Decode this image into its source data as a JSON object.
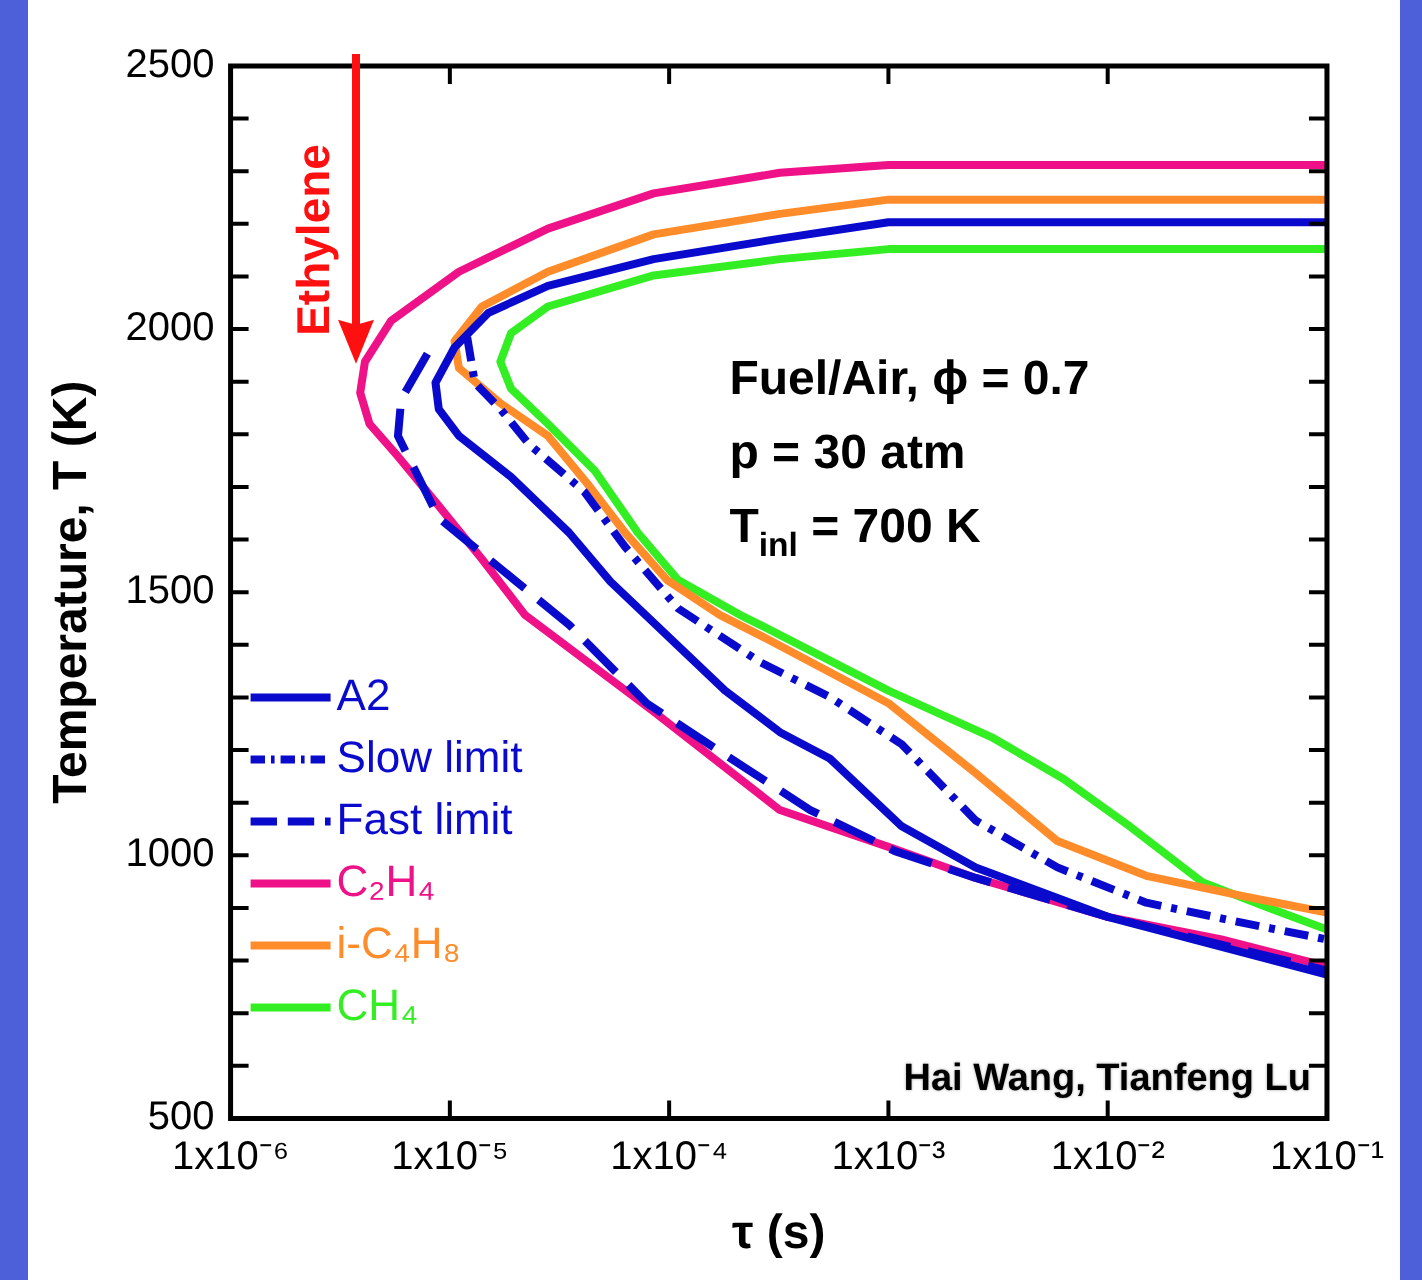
{
  "chart_data": {
    "type": "line",
    "xlabel": "τ (s)",
    "ylabel": "Temperature, T (K)",
    "log": "x",
    "legend": "left",
    "xlim": [
      1e-06,
      0.1
    ],
    "ylim": [
      500,
      2500
    ],
    "xticks": [
      {
        "value": 1e-06,
        "label": "1x10⁻⁶"
      },
      {
        "value": 1e-05,
        "label": "1x10⁻⁵"
      },
      {
        "value": 0.0001,
        "label": "1x10⁻⁴"
      },
      {
        "value": 0.001,
        "label": "1x10⁻³"
      },
      {
        "value": 0.01,
        "label": "1x10⁻²"
      },
      {
        "value": 0.1,
        "label": "1x10⁻¹"
      }
    ],
    "yticks": [
      500,
      {
        "value": 600,
        "label": null
      },
      {
        "value": 700,
        "label": null
      },
      {
        "value": 800,
        "label": null
      },
      {
        "value": 900,
        "label": null
      },
      1000,
      {
        "value": 1100,
        "label": null
      },
      {
        "value": 1200,
        "label": null
      },
      {
        "value": 1300,
        "label": null
      },
      {
        "value": 1400,
        "label": null
      },
      1500,
      {
        "value": 1600,
        "label": null
      },
      {
        "value": 1700,
        "label": null
      },
      {
        "value": 1800,
        "label": null
      },
      {
        "value": 1900,
        "label": null
      },
      2000,
      {
        "value": 2100,
        "label": null
      },
      {
        "value": 2200,
        "label": null
      },
      {
        "value": 2300,
        "label": null
      },
      {
        "value": 2400,
        "label": null
      },
      2500
    ],
    "series": [
      {
        "name": "A2",
        "color": "#0a0acc",
        "line_style": "solid",
        "x": [
          0.1,
          0.001,
          0.00032,
          8.5e-05,
          2.8e-05,
          1.5e-05,
          1.05e-05,
          8.6e-06,
          8.9e-06,
          1.1e-05,
          1.9e-05,
          3.5e-05,
          5.4e-05,
          0.00018,
          0.00032,
          0.00054,
          0.00115,
          0.0025,
          0.01,
          0.1
        ],
        "values": [
          2203,
          2203,
          2172,
          2133,
          2082,
          2031,
          1965,
          1898,
          1848,
          1797,
          1719,
          1613,
          1520,
          1313,
          1234,
          1184,
          1055,
          977,
          883,
          773
        ]
      },
      {
        "name": "Slow limit",
        "color": "#0a0acc",
        "line_style": "dashdot",
        "x": [
          1.2e-05,
          1.3e-05,
          1.7e-05,
          2.3e-05,
          4.1e-05,
          6.3e-05,
          0.00011,
          0.00026,
          0.00054,
          0.00115,
          0.0025,
          0.0059,
          0.015,
          0.042,
          0.1
        ],
        "values": [
          1984,
          1898,
          1848,
          1781,
          1691,
          1586,
          1469,
          1367,
          1301,
          1211,
          1066,
          977,
          910,
          871,
          840
        ]
      },
      {
        "name": "Fast limit",
        "color": "#0a0acc",
        "line_style": "dashed",
        "x": [
          7.9e-06,
          6e-06,
          5.8e-06,
          8.9e-06,
          3.5e-05,
          7.9e-05,
          0.00018,
          0.00044,
          0.00107,
          0.0025,
          0.01,
          0.1
        ],
        "values": [
          1953,
          1867,
          1797,
          1641,
          1438,
          1289,
          1191,
          1086,
          1008,
          957,
          883,
          781
        ]
      },
      {
        "name": "C₂H₄",
        "color": "#ee1188",
        "line_style": "solid",
        "x": [
          0.1,
          0.001,
          0.00032,
          8.5e-05,
          2.8e-05,
          1.1e-05,
          5.4e-06,
          4.1e-06,
          3.9e-06,
          4.3e-06,
          5.8e-06,
          8.9e-06,
          1.4e-05,
          2.2e-05,
          3.2e-05,
          8.5e-05,
          0.00032,
          0.001,
          0.0025,
          0.01,
          0.033,
          0.1
        ],
        "values": [
          2312,
          2312,
          2297,
          2258,
          2191,
          2109,
          2016,
          1938,
          1879,
          1820,
          1758,
          1664,
          1563,
          1457,
          1406,
          1273,
          1086,
          1016,
          957,
          883,
          840,
          789
        ]
      },
      {
        "name": "i-C₄H₈",
        "color": "#ff8c2a",
        "line_style": "solid",
        "x": [
          0.1,
          0.001,
          0.00032,
          8.5e-05,
          2.8e-05,
          1.4e-05,
          1.05e-05,
          1.1e-05,
          1.7e-05,
          2.8e-05,
          4.3e-05,
          6.3e-05,
          9.8e-05,
          0.00017,
          0.00026,
          0.001,
          0.0025,
          0.0059,
          0.015,
          0.042,
          0.1
        ],
        "values": [
          2246,
          2246,
          2219,
          2180,
          2109,
          2043,
          1977,
          1926,
          1859,
          1797,
          1703,
          1613,
          1523,
          1457,
          1418,
          1289,
          1156,
          1027,
          961,
          922,
          891
        ]
      },
      {
        "name": "CH₄",
        "color": "#33ee22",
        "line_style": "solid",
        "x": [
          0.1,
          0.001,
          0.00032,
          8.5e-05,
          2.8e-05,
          1.9e-05,
          1.7e-05,
          1.9e-05,
          2.8e-05,
          4.6e-05,
          7.2e-05,
          0.00011,
          0.00021,
          0.00026,
          0.001,
          0.003,
          0.0063,
          0.0126,
          0.027,
          0.056,
          0.1
        ],
        "values": [
          2152,
          2152,
          2133,
          2102,
          2043,
          1992,
          1938,
          1887,
          1820,
          1730,
          1613,
          1523,
          1457,
          1438,
          1313,
          1223,
          1145,
          1055,
          949,
          898,
          859
        ]
      }
    ],
    "annotations": [
      {
        "text": "Ethylene",
        "x": 3.7e-06,
        "y": 1934
      },
      "Fuel/Air, ϕ = 0.7",
      "p = 30 atm",
      "T$_{inl}$ = 700 K",
      "Hai Wang, Tianfeng Lu"
    ]
  }
}
